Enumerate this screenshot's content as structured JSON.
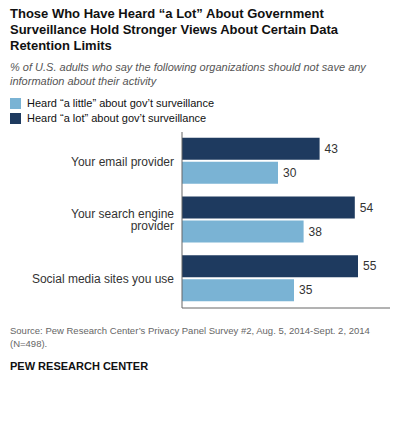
{
  "chart_data": {
    "type": "bar",
    "orientation": "horizontal",
    "title": "Those Who Have Heard “a Lot” About Government\nSurveillance Hold Stronger Views About Certain Data\nRetention Limits",
    "subtitle": "% of U.S. adults who say the following organizations should not save any information about their activity",
    "categories": [
      "Your email provider",
      "Your search engine provider",
      "Social media sites you use"
    ],
    "series": [
      {
        "name": "Heard “a little” about gov’t surveillance",
        "color": "#7ab3d4",
        "values": [
          30,
          38,
          35
        ]
      },
      {
        "name": "Heard “a lot” about gov’t surveillance",
        "color": "#1e3a5f",
        "values": [
          43,
          54,
          55
        ]
      }
    ],
    "xlim": [
      0,
      65
    ],
    "xticks": [],
    "tick_labels": "y",
    "data_labels": true,
    "grid": false,
    "legend": "upper left",
    "annotations": [
      "Source: Pew Research Center’s Privacy Panel Survey #2, Aug. 5, 2014-Sept. 2, 2014\n(N=498).",
      "PEW RESEARCH CENTER"
    ]
  }
}
